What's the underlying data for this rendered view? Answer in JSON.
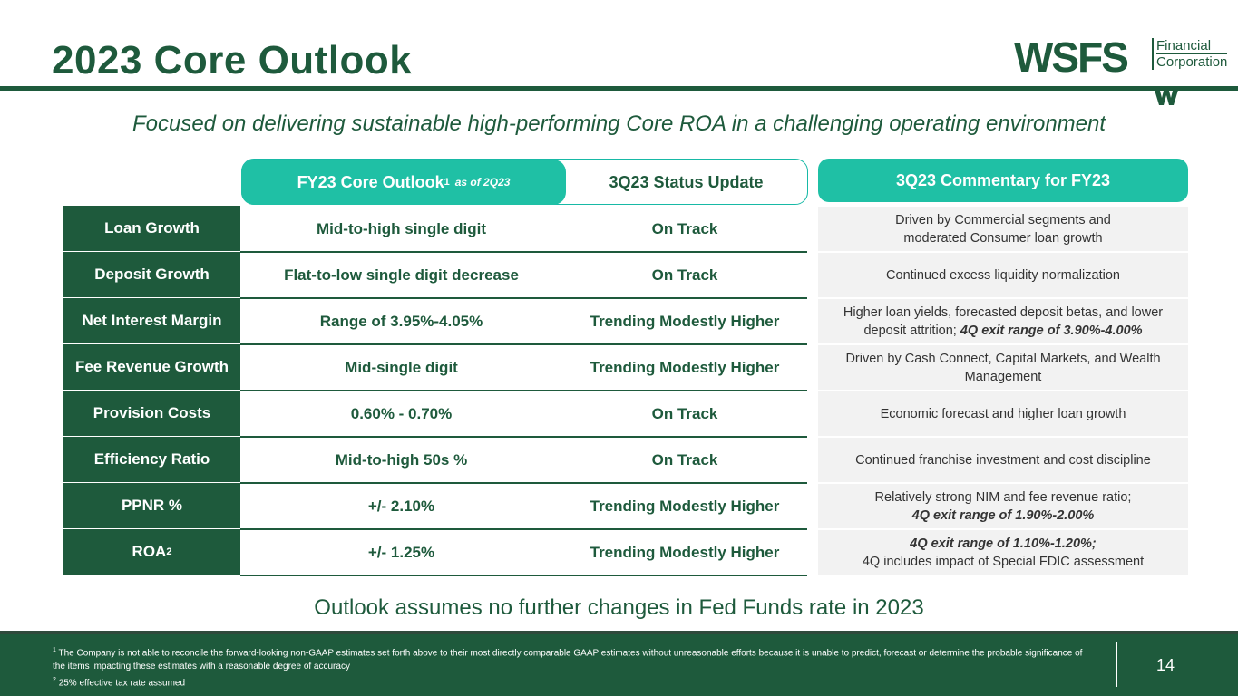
{
  "title": "2023 Core Outlook",
  "subtitle": "Focused on delivering sustainable high-performing Core ROA in a challenging operating environment",
  "logo": {
    "name": "WSFS",
    "line1": "Financial",
    "line2": "Corporation"
  },
  "headers": {
    "outlook": "FY23 Core Outlook",
    "outlook_sup": "1",
    "outlook_asof": "as of 2Q23",
    "status": "3Q23 Status Update",
    "commentary": "3Q23 Commentary for FY23"
  },
  "rows": [
    {
      "label": "Loan Growth",
      "outlook": "Mid-to-high single digit",
      "status": "On Track",
      "comment_line1": "Driven by Commercial segments and",
      "comment_line2": "moderated Consumer loan growth"
    },
    {
      "label": "Deposit Growth",
      "outlook": "Flat-to-low single digit decrease",
      "status": "On Track",
      "comment_line1": "Continued excess liquidity normalization"
    },
    {
      "label": "Net Interest Margin",
      "outlook": "Range of 3.95%-4.05%",
      "status": "Trending Modestly Higher",
      "comment_line1": "Higher loan yields, forecasted deposit betas, and lower",
      "comment_line2a": "deposit attrition; ",
      "comment_line2b": "4Q exit range of 3.90%-4.00%"
    },
    {
      "label": "Fee Revenue Growth",
      "outlook": "Mid-single digit",
      "status": "Trending Modestly Higher",
      "comment_line1": "Driven by Cash Connect, Capital Markets, and Wealth",
      "comment_line2": "Management"
    },
    {
      "label": "Provision Costs",
      "outlook": "0.60% - 0.70%",
      "status": "On Track",
      "comment_line1": "Economic forecast and higher loan growth"
    },
    {
      "label": "Efficiency Ratio",
      "outlook": "Mid-to-high 50s %",
      "status": "On Track",
      "comment_line1": "Continued franchise investment and cost discipline"
    },
    {
      "label": "PPNR %",
      "outlook": "+/- 2.10%",
      "status": "Trending Modestly Higher",
      "comment_line1": "Relatively strong NIM and fee revenue ratio;",
      "comment_line2": "4Q exit range of 1.90%-2.00%"
    },
    {
      "label": "ROA",
      "label_sup": "2",
      "outlook": "+/- 1.25%",
      "status": "Trending Modestly Higher",
      "comment_line1": "4Q exit range of 1.10%-1.20%;",
      "comment_line2": "4Q includes impact of Special FDIC assessment"
    }
  ],
  "assumption": "Outlook assumes no further changes in Fed Funds rate in 2023",
  "footnotes": {
    "fn1_sup": "1",
    "fn1": "The Company is not able to reconcile the forward-looking non-GAAP estimates set forth above to their most directly comparable GAAP estimates without unreasonable efforts because it is unable to predict, forecast or determine the probable significance of the items impacting these estimates with a reasonable degree of accuracy",
    "fn2_sup": "2",
    "fn2": "25% effective tax rate assumed"
  },
  "page_number": "14",
  "colors": {
    "primary": "#1e5a3c",
    "accent": "#1fc0a5",
    "comment_bg": "#f2f2f2"
  }
}
